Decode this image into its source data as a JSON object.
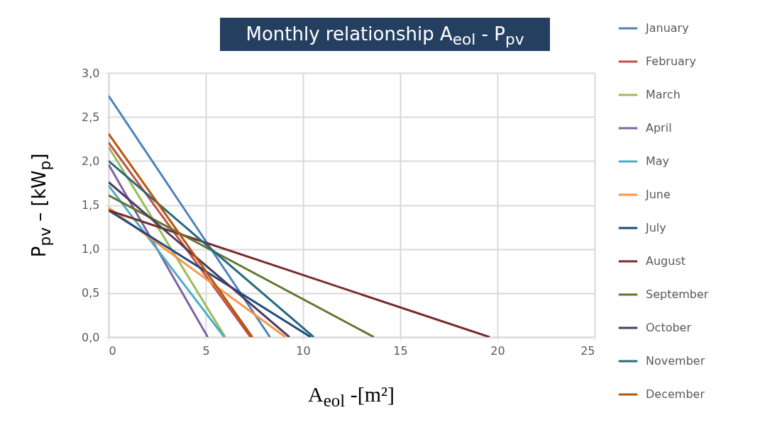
{
  "chart_data": {
    "type": "line",
    "title": "Monthly relationship A$_{eol}$ - P$_{pv}$",
    "xlabel": "A$_{eol}$ -[m²]",
    "ylabel": "P$_{pv}$ – [kW$_{p}$]",
    "xlim": [
      0,
      25
    ],
    "xticks": [
      0,
      5,
      10,
      15,
      20,
      25
    ],
    "ylim": [
      0,
      3
    ],
    "yticks": [
      {
        "value": 0,
        "label": "0,0"
      },
      {
        "value": 0.5,
        "label": "0,5"
      },
      {
        "value": 1,
        "label": "1,0"
      },
      {
        "value": 1.5,
        "label": "1,5"
      },
      {
        "value": 2,
        "label": "2,0"
      },
      {
        "value": 2.5,
        "label": "2,5"
      },
      {
        "value": 3,
        "label": "3,0"
      }
    ],
    "grid": true,
    "legend": "right",
    "marker": "none",
    "line_style": "solid",
    "series": [
      {
        "name": "January",
        "color": "#4f81bd",
        "x": [
          0,
          8.3
        ],
        "values": [
          2.74,
          0
        ]
      },
      {
        "name": "February",
        "color": "#c0504d",
        "x": [
          0,
          7.3
        ],
        "values": [
          2.21,
          0
        ]
      },
      {
        "name": "March",
        "color": "#9bbb59",
        "x": [
          0,
          6.0
        ],
        "values": [
          2.16,
          0
        ]
      },
      {
        "name": "April",
        "color": "#8064a2",
        "x": [
          0,
          5.1
        ],
        "values": [
          1.96,
          0
        ]
      },
      {
        "name": "May",
        "color": "#4bacc6",
        "x": [
          0,
          5.95
        ],
        "values": [
          1.72,
          0
        ]
      },
      {
        "name": "June",
        "color": "#f79646",
        "x": [
          0,
          9.1
        ],
        "values": [
          1.47,
          0
        ]
      },
      {
        "name": "July",
        "color": "#1f497d",
        "x": [
          0,
          10.4
        ],
        "values": [
          1.44,
          0
        ]
      },
      {
        "name": "August",
        "color": "#772c2a",
        "x": [
          0,
          19.6
        ],
        "values": [
          1.44,
          0
        ]
      },
      {
        "name": "September",
        "color": "#5f7530",
        "x": [
          0,
          13.65
        ],
        "values": [
          1.61,
          0
        ]
      },
      {
        "name": "October",
        "color": "#4d3b62",
        "x": [
          0,
          9.3
        ],
        "values": [
          1.76,
          0
        ]
      },
      {
        "name": "November",
        "color": "#276a7c",
        "x": [
          0,
          10.55
        ],
        "values": [
          2.0,
          0
        ]
      },
      {
        "name": "December",
        "color": "#b65708",
        "x": [
          0,
          7.4
        ],
        "values": [
          2.31,
          0
        ]
      }
    ]
  }
}
